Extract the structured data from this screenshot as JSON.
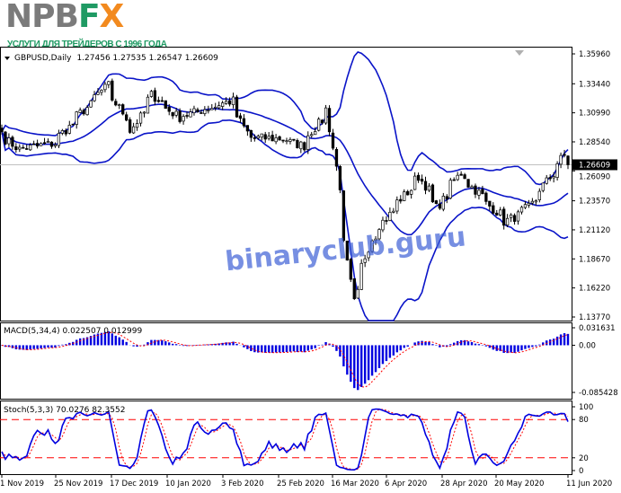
{
  "logo": {
    "text_gray": "NPB",
    "text_f": "F",
    "text_x": "X",
    "tagline": "УСЛУГИ ДЛЯ ТРЕЙДЕРОВ С 1996 ГОДА",
    "colors": {
      "gray": "#7b7b7b",
      "green": "#1f9a63",
      "orange": "#f28a1f"
    }
  },
  "watermark": "binaryclub.guru",
  "chart_data": [
    {
      "type": "candlestick",
      "title": "GBPUSD,Daily",
      "ohlc_label": "1.27456 1.27535 1.26547 1.26609",
      "last_price": 1.26609,
      "last_price_label": "1.26609",
      "ylim": [
        1.1377,
        1.3596
      ],
      "yticks": [
        "1.35960",
        "1.33440",
        "1.30990",
        "1.28540",
        "1.26090",
        "1.23570",
        "1.21120",
        "1.18670",
        "1.16220",
        "1.13770"
      ],
      "overlay": "Bollinger Bands (20, 2)",
      "close_keypoints": [
        [
          "2019-11-01",
          1.294
        ],
        [
          "2019-11-08",
          1.279
        ],
        [
          "2019-11-22",
          1.284
        ],
        [
          "2019-12-04",
          1.312
        ],
        [
          "2019-12-13",
          1.333
        ],
        [
          "2019-12-23",
          1.295
        ],
        [
          "2019-12-31",
          1.325
        ],
        [
          "2020-01-10",
          1.306
        ],
        [
          "2020-01-31",
          1.32
        ],
        [
          "2020-02-07",
          1.289
        ],
        [
          "2020-02-20",
          1.288
        ],
        [
          "2020-02-28",
          1.282
        ],
        [
          "2020-03-09",
          1.313
        ],
        [
          "2020-03-19",
          1.15
        ],
        [
          "2020-03-26",
          1.204
        ],
        [
          "2020-04-03",
          1.227
        ],
        [
          "2020-04-14",
          1.256
        ],
        [
          "2020-04-21",
          1.23
        ],
        [
          "2020-04-30",
          1.259
        ],
        [
          "2020-05-08",
          1.24
        ],
        [
          "2020-05-18",
          1.218
        ],
        [
          "2020-05-27",
          1.23
        ],
        [
          "2020-06-10",
          1.274
        ],
        [
          "2020-06-11",
          1.26609
        ]
      ],
      "colors": {
        "bands": "#0a14c8",
        "candle": "#000000",
        "last_price_line": "#c0c0c0"
      }
    },
    {
      "type": "bar",
      "title": "MACD(5,34,4) 0.022507 0.012999",
      "ylim": [
        -0.085428,
        0.031631
      ],
      "yticks": [
        "0.031631",
        "0.00",
        "-0.085428"
      ],
      "colors": {
        "histogram": "#0000e0",
        "signal": "#ff0000"
      }
    },
    {
      "type": "line",
      "title": "Stoch(5,3,3) 70.0276 82.3552",
      "ylim": [
        0,
        100
      ],
      "yticks": [
        "100",
        "80",
        "20",
        "0"
      ],
      "levels": [
        80,
        20
      ],
      "colors": {
        "k": "#0000e0",
        "d": "#ff0000",
        "levels": "#ff0000"
      }
    }
  ],
  "xaxis": {
    "labels": [
      "1 Nov 2019",
      "25 Nov 2019",
      "17 Dec 2019",
      "10 Jan 2020",
      "3 Feb 2020",
      "25 Feb 2020",
      "16 Mar 2020",
      "6 Apr 2020",
      "28 Apr 2020",
      "20 May 2020",
      "11 Jun 2020"
    ]
  }
}
